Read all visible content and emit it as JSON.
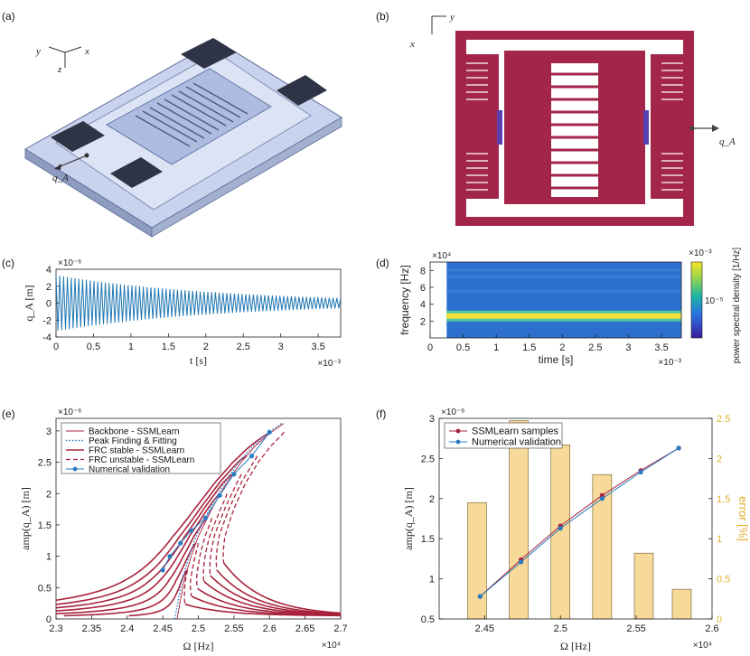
{
  "panel_labels": {
    "a": "(a)",
    "b": "(b)",
    "c": "(c)",
    "d": "(d)",
    "e": "(e)",
    "f": "(f)"
  },
  "panel_a": {
    "axis_x": "x",
    "axis_y": "y",
    "axis_z": "z",
    "q_label": "q_A"
  },
  "panel_b": {
    "axis_x": "x",
    "axis_y": "y",
    "q_label": "q_A"
  },
  "colors": {
    "maroon": "#a8233d",
    "blue": "#2a7bbf",
    "signal": "#1f77b4",
    "bar": "#f7d99a",
    "bar_edge": "#6b5a2a",
    "error_axis": "#e0b030",
    "device_b": "#a3264a",
    "device_a": "#b8c6e6"
  },
  "chart_data": [
    {
      "id": "c",
      "type": "line",
      "title": "",
      "xlabel": "t [s]",
      "ylabel": "q_A [m]",
      "x_exponent": "×10⁻³",
      "y_exponent": "×10⁻⁶",
      "xlim": [
        0,
        3.8
      ],
      "ylim": [
        -4,
        4
      ],
      "xticks": [
        0,
        0.5,
        1,
        1.5,
        2,
        2.5,
        3,
        3.5
      ],
      "xtick_labels": [
        "0",
        "0.5",
        "1",
        "1.5",
        "2",
        "2.5",
        "3",
        "3.5"
      ],
      "yticks": [
        -4,
        -2,
        0,
        2,
        4
      ],
      "ytick_labels": [
        "-4",
        "-2",
        "0",
        "2",
        "4"
      ],
      "series": [
        {
          "name": "q_A(t)",
          "envelope_start": 3.3,
          "envelope_end": 0.6,
          "decay": "exponential"
        }
      ]
    },
    {
      "id": "d",
      "type": "heatmap",
      "title": "",
      "xlabel": "time [s]",
      "ylabel": "frequency [Hz]",
      "x_exponent": "×10⁻³",
      "y_exponent": "×10⁴",
      "xlim": [
        0,
        3.8
      ],
      "ylim": [
        0,
        9
      ],
      "xticks": [
        0,
        0.5,
        1,
        1.5,
        2,
        2.5,
        3,
        3.5
      ],
      "xtick_labels": [
        "0",
        "0.5",
        "1",
        "1.5",
        "2",
        "2.5",
        "3",
        "3.5"
      ],
      "yticks": [
        2,
        4,
        6,
        8
      ],
      "ytick_labels": [
        "2",
        "4",
        "6",
        "8"
      ],
      "data_x_start": 0.25,
      "dominant_frequency": 2.6,
      "colorbar_label": "power spectral density [1/Hz]",
      "colorbar_tick": "10⁻⁵"
    },
    {
      "id": "e",
      "type": "line",
      "title": "",
      "xlabel": "Ω [Hz]",
      "ylabel": "amp(q_A) [m]",
      "x_exponent": "×10⁴",
      "y_exponent": "×10⁻⁶",
      "xlim": [
        2.3,
        2.7
      ],
      "ylim": [
        0,
        3.2
      ],
      "xticks": [
        2.3,
        2.35,
        2.4,
        2.45,
        2.5,
        2.55,
        2.6,
        2.65,
        2.7
      ],
      "xtick_labels": [
        "2.3",
        "2.35",
        "2.4",
        "2.45",
        "2.5",
        "2.55",
        "2.6",
        "2.65",
        "2.7"
      ],
      "yticks": [
        0,
        0.5,
        1,
        1.5,
        2,
        2.5,
        3
      ],
      "ytick_labels": [
        "0",
        "0.5",
        "1",
        "1.5",
        "2",
        "2.5",
        "3"
      ],
      "legend": [
        "Backbone - SSMLearn",
        "Peak Finding & Fitting",
        "FRC stable - SSMLearn",
        "FRC unstable - SSMLearn",
        "Numerical validation"
      ],
      "backbone": {
        "x": [
          2.47,
          2.48,
          2.49,
          2.5,
          2.52,
          2.54,
          2.56,
          2.58,
          2.6,
          2.62
        ],
        "y": [
          0,
          0.62,
          1.0,
          1.32,
          1.78,
          2.18,
          2.5,
          2.76,
          2.96,
          3.12
        ]
      },
      "validation": {
        "x": [
          2.45,
          2.46,
          2.475,
          2.49,
          2.51,
          2.53,
          2.55,
          2.575,
          2.6
        ],
        "y": [
          0.78,
          1.0,
          1.21,
          1.41,
          1.61,
          1.97,
          2.31,
          2.6,
          2.98
        ]
      },
      "frc_levels": [
        0.78,
        1.21,
        1.61,
        2.0,
        2.31,
        2.6,
        2.98
      ]
    },
    {
      "id": "f",
      "type": "bar",
      "title": "",
      "xlabel": "Ω [Hz]",
      "ylabel": "amp(q_A) [m]",
      "y2label": "error [%]",
      "x_exponent": "×10⁴",
      "y_exponent": "×10⁻⁶",
      "xlim": [
        2.42,
        2.6
      ],
      "ylim": [
        0.5,
        3
      ],
      "y2lim": [
        0,
        2.5
      ],
      "xticks": [
        2.45,
        2.5,
        2.55,
        2.6
      ],
      "xtick_labels": [
        "2.45",
        "2.5",
        "2.55",
        "2.6"
      ],
      "yticks": [
        0.5,
        1,
        1.5,
        2,
        2.5,
        3
      ],
      "ytick_labels": [
        "0.5",
        "1",
        "1.5",
        "2",
        "2.5",
        "3"
      ],
      "y2ticks": [
        0,
        0.5,
        1,
        1.5,
        2,
        2.5
      ],
      "y2tick_labels": [
        "0",
        "0.5",
        "1",
        "1.5",
        "2",
        "2.5"
      ],
      "legend": [
        "SSMLearn samples",
        "Numerical validation"
      ],
      "bars": {
        "x": [
          2.445,
          2.4725,
          2.5,
          2.5275,
          2.555,
          2.58
        ],
        "values": [
          1.45,
          2.47,
          2.17,
          1.8,
          0.82,
          0.37
        ]
      },
      "series": [
        {
          "name": "SSMLearn samples",
          "x": [
            2.447,
            2.474,
            2.5,
            2.5275,
            2.553,
            2.578
          ],
          "values": [
            0.78,
            1.24,
            1.66,
            2.04,
            2.35,
            2.63
          ]
        },
        {
          "name": "Numerical validation",
          "x": [
            2.447,
            2.474,
            2.5,
            2.5275,
            2.553,
            2.578
          ],
          "values": [
            0.78,
            1.21,
            1.63,
            2.0,
            2.33,
            2.63
          ]
        }
      ]
    }
  ]
}
